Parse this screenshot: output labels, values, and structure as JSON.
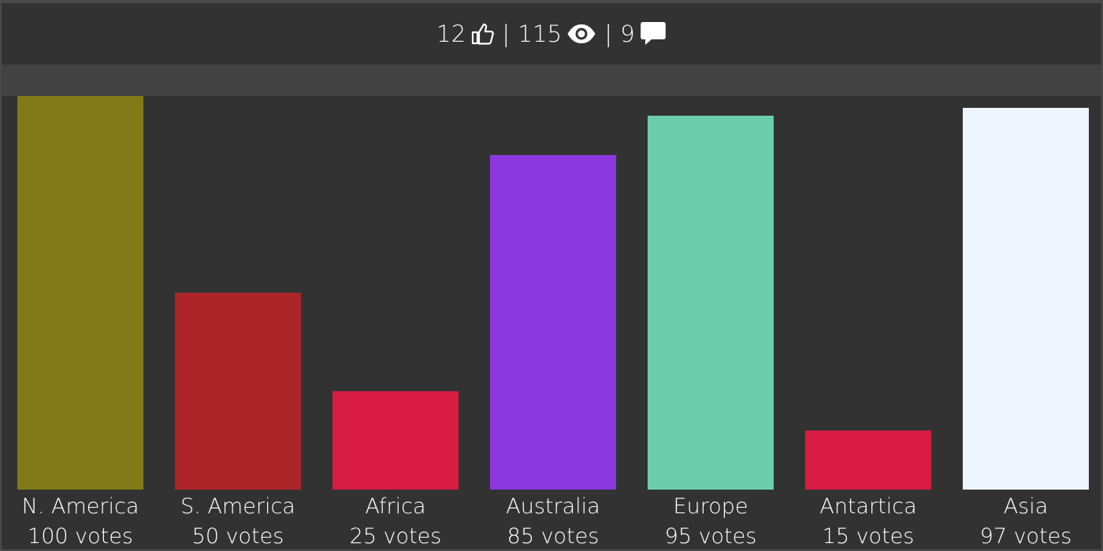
{
  "stats": {
    "likes": "12",
    "views": "115",
    "comments": "9",
    "separator": "|",
    "like_icon": "thumbs-up-icon",
    "view_icon": "eye-icon",
    "comment_icon": "comment-icon"
  },
  "colors": {
    "background": "#323232",
    "band": "#424242",
    "text": "#ffffff"
  },
  "chart_data": {
    "type": "bar",
    "categories": [
      "N. America",
      "S. America",
      "Africa",
      "Australia",
      "Europe",
      "Antartica",
      "Asia"
    ],
    "values": [
      100,
      50,
      25,
      85,
      95,
      15,
      97
    ],
    "value_labels": [
      "100 votes",
      "50 votes",
      "25 votes",
      "85 votes",
      "95 votes",
      "15 votes",
      "97 votes"
    ],
    "bar_colors": [
      "#807a18",
      "#ae2529",
      "#d81b42",
      "#8a38de",
      "#6bcdab",
      "#d81b42",
      "#eef5ff"
    ],
    "ylim": [
      0,
      100
    ]
  }
}
